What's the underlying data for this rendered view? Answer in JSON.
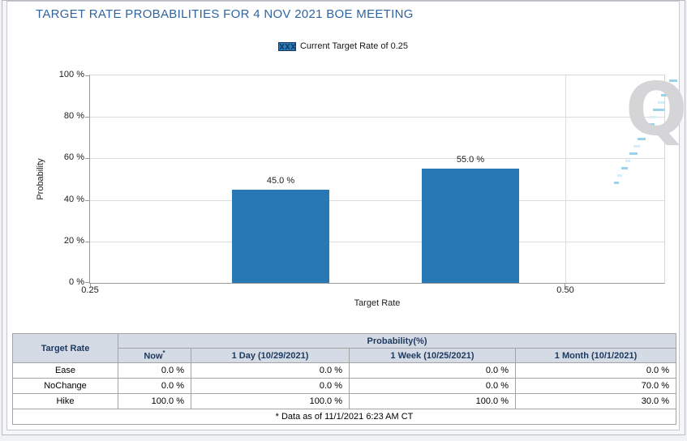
{
  "title": "TARGET RATE PROBABILITIES FOR 4 NOV 2021 BOE MEETING",
  "legend": {
    "label": "Current Target Rate of 0.25",
    "swatch_fill": "#2e7cb8",
    "swatch_border": "#17395f",
    "swatch_hatch": "#0e3a66"
  },
  "watermark_letter": "Q",
  "chart_data": {
    "type": "bar",
    "title": "TARGET RATE PROBABILITIES FOR 4 NOV 2021 BOE MEETING",
    "xlabel": "Target Rate",
    "ylabel": "Probability",
    "ylim": [
      0,
      100
    ],
    "grid": true,
    "legend_position": "top-center",
    "legend_label": "Current Target Rate of 0.25",
    "bar_color": "#2878b5",
    "bar_width_frac": 0.169,
    "y_ticks": [
      {
        "label": "0 %",
        "value": 0
      },
      {
        "label": "20 %",
        "value": 20
      },
      {
        "label": "40 %",
        "value": 40
      },
      {
        "label": "60 %",
        "value": 60
      },
      {
        "label": "80 %",
        "value": 80
      },
      {
        "label": "100 %",
        "value": 100
      }
    ],
    "x_ticks": [
      {
        "label": "0.25",
        "frac": 0
      },
      {
        "label": "0.50",
        "frac": 0.827
      }
    ],
    "bars": [
      {
        "x": 0.35,
        "value": 45.0,
        "label": "45.0 %",
        "center_frac": 0.332
      },
      {
        "x": 0.45,
        "value": 55.0,
        "label": "55.0 %",
        "center_frac": 0.662
      }
    ]
  },
  "table": {
    "corner_header": "Target Rate",
    "group_header": "Probability(%)",
    "now_footnote_marker": "*",
    "columns": [
      "Now",
      "1 Day (10/29/2021)",
      "1 Week (10/25/2021)",
      "1 Month (10/1/2021)"
    ],
    "rows": [
      {
        "label": "Ease",
        "values": [
          "0.0 %",
          "0.0 %",
          "0.0 %",
          "0.0 %"
        ]
      },
      {
        "label": "NoChange",
        "values": [
          "0.0 %",
          "0.0 %",
          "0.0 %",
          "70.0 %"
        ]
      },
      {
        "label": "Hike",
        "values": [
          "100.0 %",
          "100.0 %",
          "100.0 %",
          "30.0 %"
        ]
      }
    ],
    "footnote": "* Data as of 11/1/2021 6:23 AM CT"
  }
}
